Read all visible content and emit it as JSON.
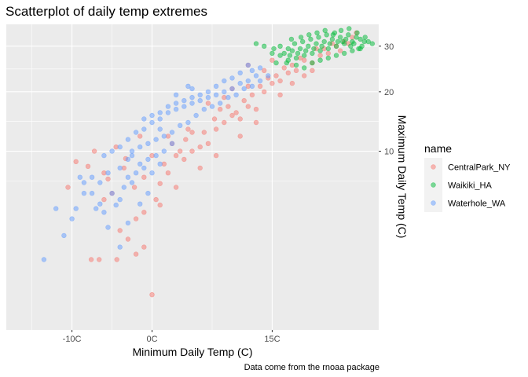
{
  "chart_data": {
    "type": "scatter",
    "title": "Scatterplot of daily temp extremes",
    "xlabel": "Minimum Daily Temp (C)",
    "ylabel": "Maximum Daily Temp (C)",
    "caption": "Data come from the rnoaa package",
    "x_ticks": [
      {
        "value": -10,
        "label": "-10C"
      },
      {
        "value": 0,
        "label": "0C"
      },
      {
        "value": 15,
        "label": "15C"
      }
    ],
    "y_ticks": [
      {
        "value": 10,
        "label": "10"
      },
      {
        "value": 20,
        "label": "20"
      },
      {
        "value": 30,
        "label": "30"
      }
    ],
    "y_scale": "sqrt",
    "y_axis_position": "right",
    "xlim": [
      -18.2,
      28.3
    ],
    "ylim": [
      -0.6,
      35.5
    ],
    "grid": true,
    "legend_placement": "right",
    "legend_title": "name",
    "point_alpha": 0.5,
    "series": [
      {
        "name": "CentralPark_NY",
        "color": "#F8766D",
        "points": [
          [
            -10.5,
            5.6
          ],
          [
            -7.6,
            0.6
          ],
          [
            -6.6,
            0.6
          ],
          [
            -4.4,
            0.6
          ],
          [
            -6.0,
            4.4
          ],
          [
            -4.0,
            2.0
          ],
          [
            -3.0,
            1.5
          ],
          [
            -2.0,
            2.8
          ],
          [
            -1.0,
            1.1
          ],
          [
            -5.5,
            6.5
          ],
          [
            -8.0,
            8.0
          ],
          [
            -9.5,
            8.6
          ],
          [
            -7.2,
            10.0
          ],
          [
            -4.5,
            10.6
          ],
          [
            -6.0,
            7.2
          ],
          [
            -3.3,
            9.0
          ],
          [
            -2.2,
            5.6
          ],
          [
            -1.0,
            6.7
          ],
          [
            0.5,
            4.4
          ],
          [
            1.0,
            6.0
          ],
          [
            2.0,
            7.2
          ],
          [
            1.5,
            8.3
          ],
          [
            3.0,
            9.4
          ],
          [
            4.0,
            8.9
          ],
          [
            5.0,
            10.0
          ],
          [
            2.5,
            11.1
          ],
          [
            3.5,
            10.0
          ],
          [
            4.2,
            11.7
          ],
          [
            6.0,
            10.6
          ],
          [
            7.0,
            11.1
          ],
          [
            6.5,
            12.8
          ],
          [
            5.0,
            12.8
          ],
          [
            8.0,
            13.3
          ],
          [
            7.8,
            15.0
          ],
          [
            9.0,
            14.4
          ],
          [
            10.0,
            15.6
          ],
          [
            8.5,
            16.7
          ],
          [
            9.5,
            17.2
          ],
          [
            10.5,
            16.1
          ],
          [
            11.0,
            15.0
          ],
          [
            12.0,
            17.2
          ],
          [
            11.5,
            18.3
          ],
          [
            12.5,
            19.4
          ],
          [
            13.0,
            16.7
          ],
          [
            14.0,
            20.0
          ],
          [
            13.5,
            21.1
          ],
          [
            15.0,
            21.7
          ],
          [
            14.5,
            22.8
          ],
          [
            16.0,
            22.2
          ],
          [
            15.5,
            23.3
          ],
          [
            17.0,
            23.9
          ],
          [
            16.5,
            25.0
          ],
          [
            18.0,
            24.4
          ],
          [
            17.5,
            25.6
          ],
          [
            19.0,
            26.7
          ],
          [
            18.5,
            27.2
          ],
          [
            20.0,
            26.1
          ],
          [
            21.0,
            27.8
          ],
          [
            22.0,
            28.3
          ],
          [
            21.5,
            29.4
          ],
          [
            23.0,
            30.0
          ],
          [
            24.0,
            31.1
          ],
          [
            25.0,
            32.2
          ],
          [
            24.5,
            30.6
          ],
          [
            23.5,
            28.9
          ],
          [
            20.5,
            29.4
          ],
          [
            22.5,
            30.6
          ],
          [
            25.5,
            33.3
          ],
          [
            20.0,
            24.4
          ],
          [
            19.0,
            23.3
          ],
          [
            17.5,
            21.7
          ],
          [
            16.0,
            19.4
          ],
          [
            13.0,
            14.4
          ],
          [
            11.0,
            12.2
          ],
          [
            8.0,
            9.4
          ],
          [
            6.0,
            7.8
          ],
          [
            3.0,
            5.6
          ],
          [
            1.0,
            3.9
          ],
          [
            -1.0,
            3.3
          ],
          [
            0.0,
            0.0
          ],
          [
            -2.0,
            0.8
          ],
          [
            4.5,
            13.3
          ],
          [
            2.0,
            12.2
          ],
          [
            0.0,
            9.4
          ],
          [
            -1.5,
            12.2
          ],
          [
            -3.5,
            7.8
          ],
          [
            -5.0,
            5.0
          ],
          [
            9.0,
            18.9
          ],
          [
            7.0,
            17.8
          ],
          [
            12.0,
            21.1
          ],
          [
            10.0,
            20.6
          ],
          [
            14.0,
            24.4
          ],
          [
            12.0,
            25.6
          ],
          [
            15.0,
            26.7
          ]
        ]
      },
      {
        "name": "Waikiki_HA",
        "color": "#00BA38",
        "points": [
          [
            13.0,
            30.6
          ],
          [
            14.0,
            30.0
          ],
          [
            15.0,
            28.3
          ],
          [
            16.0,
            27.8
          ],
          [
            17.0,
            26.7
          ],
          [
            18.0,
            27.2
          ],
          [
            19.0,
            27.8
          ],
          [
            20.0,
            28.3
          ],
          [
            21.0,
            28.9
          ],
          [
            22.0,
            29.4
          ],
          [
            23.0,
            30.0
          ],
          [
            24.0,
            30.6
          ],
          [
            25.0,
            31.1
          ],
          [
            26.0,
            31.7
          ],
          [
            17.5,
            28.9
          ],
          [
            18.5,
            29.4
          ],
          [
            19.5,
            30.0
          ],
          [
            20.5,
            30.6
          ],
          [
            21.5,
            31.1
          ],
          [
            22.5,
            31.7
          ],
          [
            23.5,
            32.2
          ],
          [
            24.5,
            32.8
          ],
          [
            25.5,
            32.2
          ],
          [
            26.5,
            31.1
          ],
          [
            16.5,
            28.3
          ],
          [
            17.8,
            30.6
          ],
          [
            18.8,
            31.1
          ],
          [
            19.8,
            31.7
          ],
          [
            20.8,
            32.2
          ],
          [
            21.8,
            32.8
          ],
          [
            22.8,
            33.3
          ],
          [
            23.8,
            31.1
          ],
          [
            24.8,
            30.0
          ],
          [
            25.8,
            29.4
          ],
          [
            16.0,
            30.0
          ],
          [
            17.0,
            29.4
          ],
          [
            18.0,
            25.6
          ],
          [
            19.0,
            25.0
          ],
          [
            20.0,
            26.1
          ],
          [
            21.0,
            26.7
          ],
          [
            22.0,
            27.2
          ],
          [
            23.0,
            27.8
          ],
          [
            24.0,
            28.3
          ],
          [
            25.0,
            28.9
          ],
          [
            26.0,
            29.4
          ],
          [
            15.5,
            26.1
          ],
          [
            16.8,
            26.1
          ],
          [
            17.2,
            27.8
          ],
          [
            18.2,
            28.3
          ],
          [
            19.2,
            28.9
          ],
          [
            20.2,
            29.4
          ],
          [
            21.2,
            30.0
          ],
          [
            22.2,
            30.6
          ],
          [
            23.2,
            31.1
          ],
          [
            24.2,
            31.7
          ],
          [
            25.2,
            30.6
          ],
          [
            26.2,
            30.0
          ],
          [
            18.6,
            32.2
          ],
          [
            19.6,
            32.8
          ],
          [
            20.6,
            33.3
          ],
          [
            21.6,
            33.9
          ],
          [
            22.6,
            32.8
          ],
          [
            23.6,
            33.9
          ],
          [
            24.6,
            34.4
          ],
          [
            25.6,
            33.3
          ],
          [
            26.6,
            32.2
          ],
          [
            27.0,
            31.1
          ],
          [
            27.5,
            30.6
          ],
          [
            17.4,
            31.7
          ],
          [
            15.2,
            29.4
          ]
        ]
      },
      {
        "name": "Waterhole_WA",
        "color": "#619CFF",
        "points": [
          [
            -13.5,
            0.6
          ],
          [
            -12.0,
            3.6
          ],
          [
            -9.5,
            3.6
          ],
          [
            -7.0,
            3.6
          ],
          [
            -5.5,
            2.2
          ],
          [
            -4.0,
            1.1
          ],
          [
            -3.0,
            2.5
          ],
          [
            -8.5,
            5.0
          ],
          [
            -7.5,
            5.0
          ],
          [
            -6.5,
            4.0
          ],
          [
            -5.0,
            5.0
          ],
          [
            -4.0,
            4.4
          ],
          [
            -3.5,
            5.6
          ],
          [
            -2.5,
            6.1
          ],
          [
            -1.5,
            4.0
          ],
          [
            -0.5,
            5.0
          ],
          [
            -2.0,
            7.2
          ],
          [
            -1.0,
            7.8
          ],
          [
            0.0,
            7.2
          ],
          [
            1.0,
            8.3
          ],
          [
            -3.0,
            8.9
          ],
          [
            -4.0,
            7.8
          ],
          [
            -5.5,
            7.2
          ],
          [
            -6.5,
            6.1
          ],
          [
            -7.5,
            6.7
          ],
          [
            -8.5,
            6.1
          ],
          [
            -9.0,
            6.7
          ],
          [
            -2.5,
            10.0
          ],
          [
            -1.5,
            10.6
          ],
          [
            -0.5,
            11.1
          ],
          [
            0.5,
            11.7
          ],
          [
            1.5,
            12.2
          ],
          [
            2.5,
            12.8
          ],
          [
            -1.0,
            13.3
          ],
          [
            0.0,
            14.4
          ],
          [
            1.0,
            15.0
          ],
          [
            2.0,
            16.1
          ],
          [
            3.0,
            16.7
          ],
          [
            4.0,
            17.2
          ],
          [
            5.0,
            17.8
          ],
          [
            6.0,
            18.3
          ],
          [
            7.0,
            18.9
          ],
          [
            8.0,
            19.4
          ],
          [
            9.0,
            20.0
          ],
          [
            10.0,
            20.6
          ],
          [
            11.0,
            21.7
          ],
          [
            12.0,
            22.2
          ],
          [
            13.0,
            23.3
          ],
          [
            12.5,
            24.4
          ],
          [
            13.5,
            25.0
          ],
          [
            12.0,
            25.6
          ],
          [
            11.0,
            23.9
          ],
          [
            10.0,
            22.8
          ],
          [
            9.0,
            22.2
          ],
          [
            8.0,
            21.1
          ],
          [
            7.0,
            20.0
          ],
          [
            6.0,
            19.4
          ],
          [
            5.0,
            18.9
          ],
          [
            4.0,
            18.3
          ],
          [
            3.0,
            17.8
          ],
          [
            2.0,
            17.2
          ],
          [
            1.0,
            16.1
          ],
          [
            0.0,
            15.6
          ],
          [
            -1.0,
            15.0
          ],
          [
            -2.0,
            12.8
          ],
          [
            -3.0,
            11.7
          ],
          [
            -4.0,
            10.6
          ],
          [
            -5.0,
            10.0
          ],
          [
            -6.0,
            9.4
          ],
          [
            -3.0,
            6.7
          ],
          [
            0.5,
            9.4
          ],
          [
            1.5,
            10.0
          ],
          [
            2.5,
            11.1
          ],
          [
            3.5,
            13.9
          ],
          [
            4.5,
            14.4
          ],
          [
            5.5,
            15.6
          ],
          [
            6.5,
            16.7
          ],
          [
            7.5,
            17.2
          ],
          [
            8.5,
            17.8
          ],
          [
            9.5,
            18.9
          ],
          [
            10.5,
            19.4
          ],
          [
            11.5,
            20.6
          ],
          [
            12.5,
            21.1
          ],
          [
            13.5,
            22.2
          ],
          [
            14.5,
            23.3
          ],
          [
            -0.5,
            8.9
          ],
          [
            -1.5,
            8.3
          ],
          [
            -2.5,
            9.4
          ],
          [
            1.0,
            13.3
          ],
          [
            -4.5,
            3.9
          ],
          [
            -6.0,
            3.3
          ],
          [
            -11.0,
            1.7
          ],
          [
            -10.0,
            2.8
          ],
          [
            4.5,
            21.1
          ],
          [
            5.0,
            20.6
          ],
          [
            3.0,
            19.4
          ]
        ]
      }
    ]
  }
}
